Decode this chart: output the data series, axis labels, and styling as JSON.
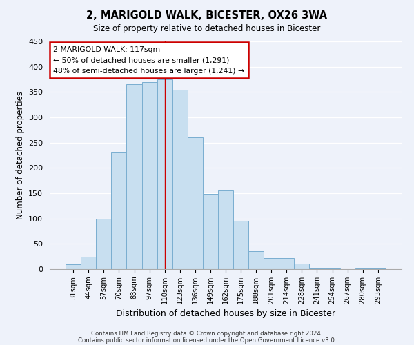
{
  "title": "2, MARIGOLD WALK, BICESTER, OX26 3WA",
  "subtitle": "Size of property relative to detached houses in Bicester",
  "xlabel": "Distribution of detached houses by size in Bicester",
  "ylabel": "Number of detached properties",
  "footnote1": "Contains HM Land Registry data © Crown copyright and database right 2024.",
  "footnote2": "Contains public sector information licensed under the Open Government Licence v3.0.",
  "bar_labels": [
    "31sqm",
    "44sqm",
    "57sqm",
    "70sqm",
    "83sqm",
    "97sqm",
    "110sqm",
    "123sqm",
    "136sqm",
    "149sqm",
    "162sqm",
    "175sqm",
    "188sqm",
    "201sqm",
    "214sqm",
    "228sqm",
    "241sqm",
    "254sqm",
    "267sqm",
    "280sqm",
    "293sqm"
  ],
  "bar_values": [
    10,
    25,
    100,
    230,
    365,
    370,
    375,
    355,
    260,
    148,
    155,
    95,
    35,
    22,
    22,
    11,
    2,
    1,
    0,
    1,
    1
  ],
  "bar_color": "#c8dff0",
  "bar_edge_color": "#7aaed0",
  "ylim": [
    0,
    450
  ],
  "yticks": [
    0,
    50,
    100,
    150,
    200,
    250,
    300,
    350,
    400,
    450
  ],
  "annotation_title": "2 MARIGOLD WALK: 117sqm",
  "annotation_line1": "← 50% of detached houses are smaller (1,291)",
  "annotation_line2": "48% of semi-detached houses are larger (1,241) →",
  "annotation_box_color": "#ffffff",
  "annotation_box_edge": "#cc0000",
  "highlight_bar_index": 6,
  "highlight_line_color": "#cc0000",
  "background_color": "#eef2fa",
  "grid_color": "#ffffff"
}
